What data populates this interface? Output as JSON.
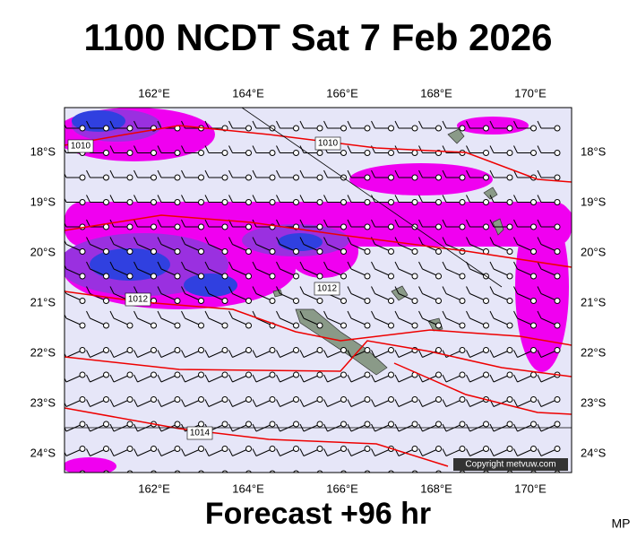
{
  "title": "1100 NCDT Sat 7 Feb 2026",
  "footer": "Forecast +96 hr",
  "initials": "MP",
  "copyright": "Copyright metvuw.com",
  "map": {
    "lon_labels": [
      "162°E",
      "164°E",
      "166°E",
      "168°E",
      "170°E"
    ],
    "lat_labels": [
      "18°S",
      "19°S",
      "20°S",
      "21°S",
      "22°S",
      "23°S",
      "24°S"
    ],
    "isobar_labels": [
      "1010",
      "1010",
      "1012",
      "1012",
      "1014"
    ]
  }
}
